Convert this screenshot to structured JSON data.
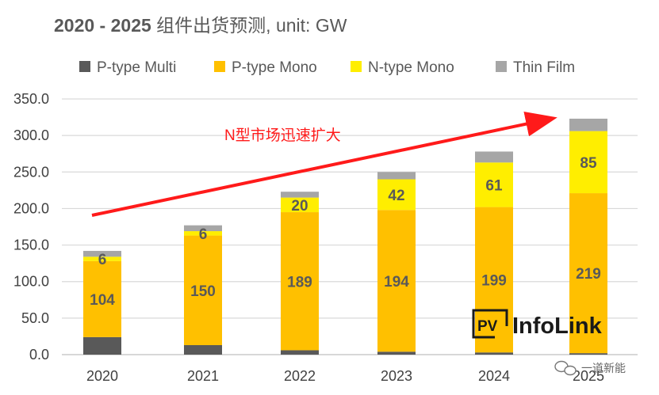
{
  "chart_data": {
    "type": "bar",
    "stacked": true,
    "title": "2020 - 2025 组件出货预测, unit: GW",
    "title_bold_part": "2020 - 2025",
    "title_rest": " 组件出货预测, unit: GW",
    "categories": [
      "2020",
      "2021",
      "2022",
      "2023",
      "2024",
      "2025"
    ],
    "series": [
      {
        "name": "P-type Multi",
        "color": "#595959",
        "values": [
          24,
          13,
          6,
          4,
          3,
          2
        ]
      },
      {
        "name": "P-type Mono",
        "color": "#ffc000",
        "values": [
          104,
          150,
          189,
          194,
          199,
          219
        ]
      },
      {
        "name": "N-type Mono",
        "color": "#ffee00",
        "values": [
          6,
          6,
          20,
          42,
          61,
          85
        ]
      },
      {
        "name": "Thin Film",
        "color": "#a6a6a6",
        "values": [
          8,
          8,
          8,
          10,
          15,
          17
        ]
      }
    ],
    "data_labels": {
      "P-type Mono": [
        "104",
        "150",
        "189",
        "194",
        "199",
        "219"
      ],
      "N-type Mono": [
        "6",
        "6",
        "20",
        "42",
        "61",
        "85"
      ]
    },
    "ylim": [
      0,
      350
    ],
    "yticks": [
      "0.0",
      "50.0",
      "100.0",
      "150.0",
      "200.0",
      "250.0",
      "300.0",
      "350.0"
    ],
    "ytick_values": [
      0,
      50,
      100,
      150,
      200,
      250,
      300,
      350
    ],
    "grid": true,
    "legend_position": "top",
    "xlabel": "",
    "ylabel": "",
    "annotation": {
      "text": "N型市场迅速扩大",
      "color": "#ff1a1a",
      "arrow": true
    }
  },
  "watermark": {
    "logo_box_text": "PV",
    "logo_text": "InfoLink",
    "wechat_text": "一道新能"
  }
}
